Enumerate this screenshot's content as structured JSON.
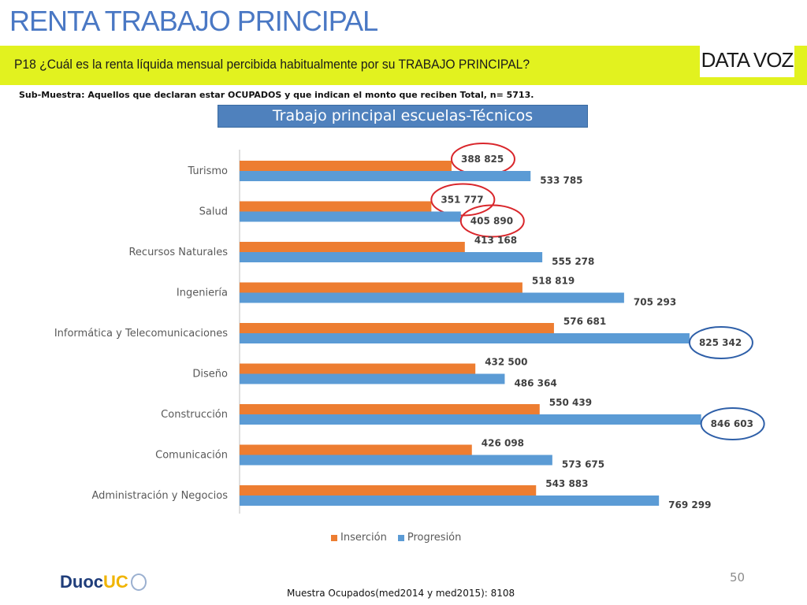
{
  "header": {
    "title": "RENTA TRABAJO PRINCIPAL",
    "question": "P18 ¿Cuál es la renta líquida mensual percibida habitualmente por su TRABAJO PRINCIPAL?",
    "logo_text": "DATA VOZ",
    "subsample": "Sub-Muestra: Aquellos que declaran estar OCUPADOS y que indican el monto que reciben Total, n= 5713."
  },
  "colors": {
    "band": "#e2f21f",
    "title": "#4a78c4",
    "insercion": "#ed7d31",
    "progresion": "#5b9bd5",
    "circle_red": "#d9262b",
    "circle_blue": "#2e5fa8"
  },
  "chart_data": {
    "type": "bar",
    "orientation": "horizontal",
    "title": "Trabajo principal escuelas-Técnicos",
    "categories": [
      "Turismo",
      "Salud",
      "Recursos Naturales",
      "Ingeniería",
      "Informática y Telecomunicaciones",
      "Diseño",
      "Construcción",
      "Comunicación",
      "Administración y Negocios"
    ],
    "series": [
      {
        "name": "Inserción",
        "color": "#ed7d31",
        "values": [
          388825,
          351777,
          413168,
          518819,
          576681,
          432500,
          550439,
          426098,
          543883
        ],
        "labels": [
          "388 825",
          "351 777",
          "413 168",
          "518 819",
          "576 681",
          "432 500",
          "550 439",
          "426 098",
          "543 883"
        ]
      },
      {
        "name": "Progresión",
        "color": "#5b9bd5",
        "values": [
          533785,
          405890,
          555278,
          705293,
          825342,
          486364,
          846603,
          573675,
          769299
        ],
        "labels": [
          "533 785",
          "405 890",
          "555 278",
          "705 293",
          "825 342",
          "486 364",
          "846 603",
          "573 675",
          "769 299"
        ]
      }
    ],
    "xlim": [
      0,
      850000
    ],
    "legend_position": "bottom",
    "grid": false,
    "highlighted": [
      {
        "series": 0,
        "category": "Turismo",
        "color": "red"
      },
      {
        "series": 0,
        "category": "Salud",
        "color": "red"
      },
      {
        "series": 1,
        "category": "Salud",
        "color": "red"
      },
      {
        "series": 1,
        "category": "Informática y Telecomunicaciones",
        "color": "blue"
      },
      {
        "series": 1,
        "category": "Construcción",
        "color": "blue"
      }
    ]
  },
  "footer": {
    "logo_duoc": "Duoc",
    "logo_uc": "UC",
    "page_number": "50",
    "sample_note": "Muestra Ocupados(med2014 y med2015): 8108"
  }
}
